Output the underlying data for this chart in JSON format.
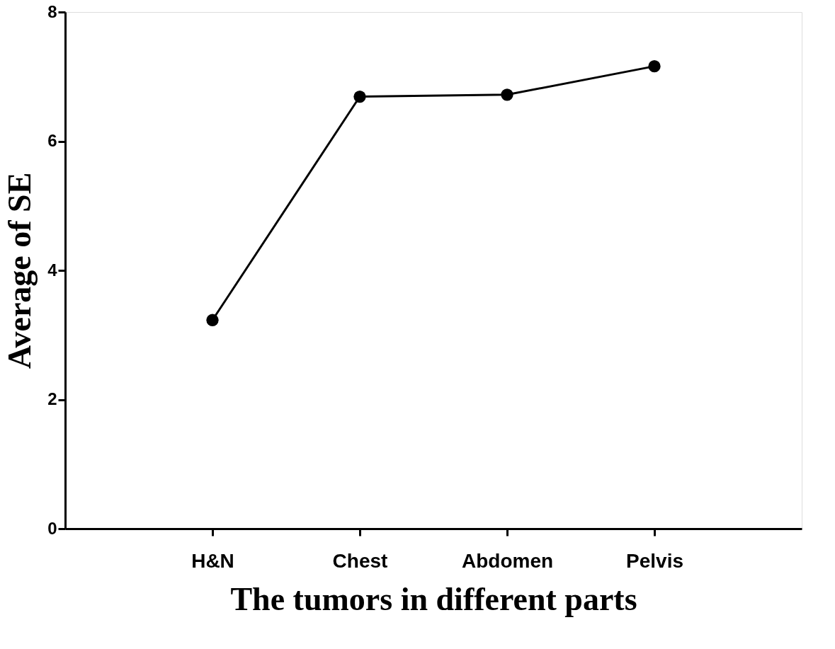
{
  "chart_data": {
    "type": "line",
    "xlabel": "The tumors in different parts",
    "ylabel": "Average of SE",
    "categories": [
      "H&N",
      "Chest",
      "Abdomen",
      "Pelvis"
    ],
    "series": [
      {
        "color": "#000000",
        "values": [
          3.23,
          6.69,
          6.72,
          7.16
        ]
      }
    ],
    "ylim": [
      0,
      8
    ],
    "yticks": [
      0,
      2,
      4,
      6,
      8
    ],
    "marker": "circle",
    "line_style": "solid",
    "grid": false
  }
}
